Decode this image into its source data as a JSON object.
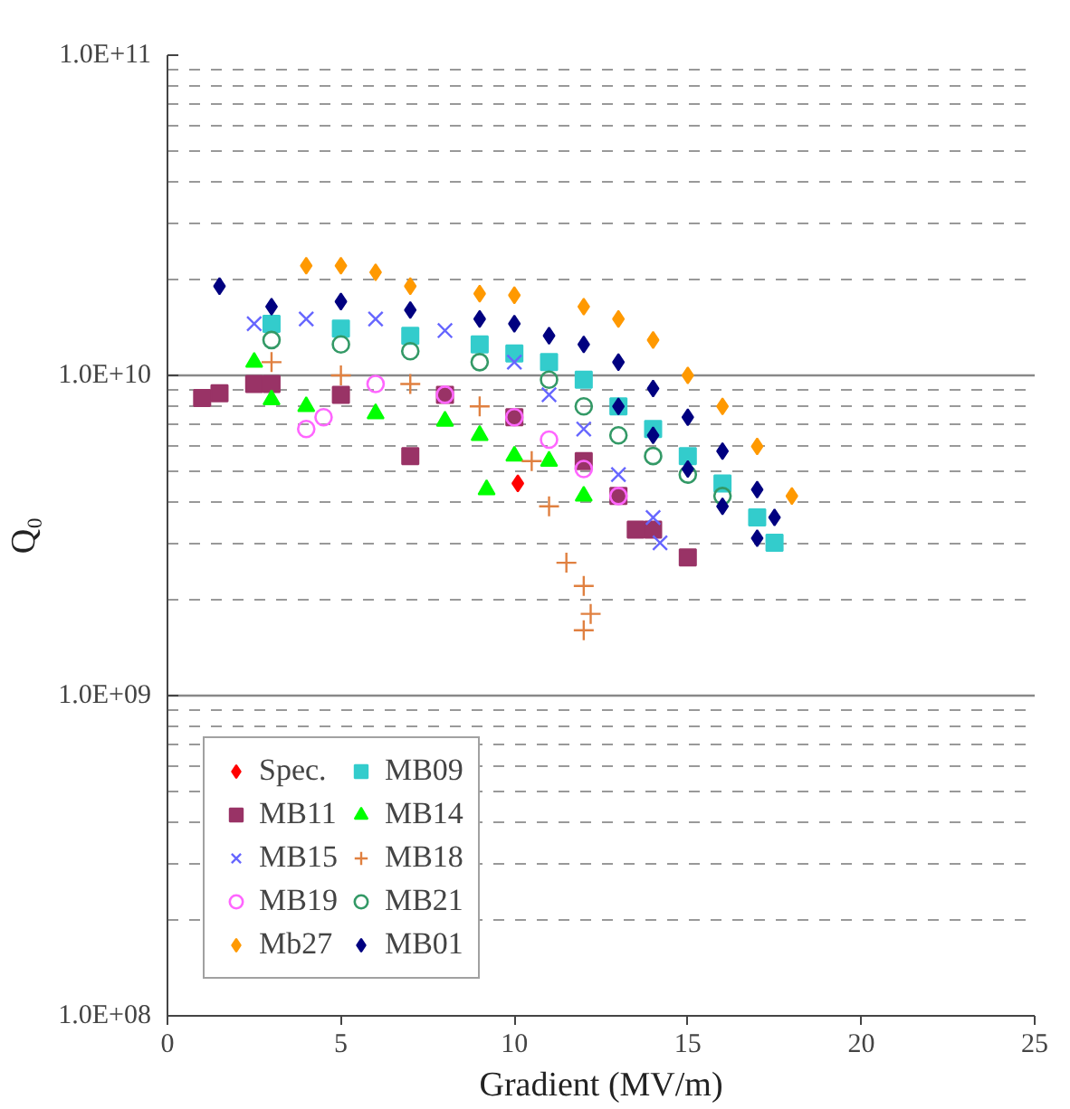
{
  "chart_data": {
    "type": "scatter",
    "xlabel": "Gradient (MV/m)",
    "ylabel": "Q₀",
    "log": "y",
    "grid": "y",
    "legend": "bottom left",
    "xlim": [
      0,
      25
    ],
    "xticks": [
      0,
      5,
      10,
      15,
      20,
      25
    ],
    "ylim": [
      100000000.0,
      100000000000.0
    ],
    "yticks": [
      {
        "value": 100000000.0,
        "label": "1.0E+08"
      },
      {
        "value": 1000000000.0,
        "label": "1.0E+09"
      },
      {
        "value": 10000000000.0,
        "label": "1.0E+10"
      },
      {
        "value": 100000000000.0,
        "label": "1.0E+11"
      }
    ],
    "series": [
      {
        "name": "Spec.",
        "color": "#ff0000",
        "marker": "diamond",
        "x": [
          10.1
        ],
        "values": [
          4600000000.0
        ]
      },
      {
        "name": "MB09",
        "color": "#33cccc",
        "marker": "square",
        "x": [
          3,
          5,
          7,
          9,
          10,
          11,
          12,
          13,
          14,
          15,
          16,
          17,
          17.5
        ],
        "values": [
          14500000000.0,
          14000000000.0,
          13300000000.0,
          12500000000.0,
          11700000000.0,
          11000000000.0,
          9700000000.0,
          8000000000.0,
          6800000000.0,
          5600000000.0,
          4600000000.0,
          3600000000.0,
          3000000000.0
        ]
      },
      {
        "name": "MB11",
        "color": "#993366",
        "marker": "square",
        "x": [
          1,
          1.5,
          2.5,
          3,
          5,
          7,
          8,
          10,
          12,
          13,
          13.5,
          14,
          15
        ],
        "values": [
          8500000000.0,
          8800000000.0,
          9400000000.0,
          9400000000.0,
          8700000000.0,
          5600000000.0,
          8700000000.0,
          7400000000.0,
          5400000000.0,
          4200000000.0,
          3300000000.0,
          3300000000.0,
          2700000000.0
        ]
      },
      {
        "name": "MB14",
        "color": "#00ff00",
        "marker": "triangle",
        "x": [
          2.5,
          3,
          4,
          6,
          8,
          9,
          9.2,
          10,
          11,
          12
        ],
        "values": [
          11000000000.0,
          8400000000.0,
          8000000000.0,
          7600000000.0,
          7200000000.0,
          6500000000.0,
          4400000000.0,
          5600000000.0,
          5400000000.0,
          4200000000.0
        ]
      },
      {
        "name": "MB15",
        "color": "#6666ff",
        "marker": "x",
        "x": [
          2.5,
          4,
          6,
          8,
          10,
          11,
          12,
          13,
          14,
          14.2
        ],
        "values": [
          14500000000.0,
          15000000000.0,
          15000000000.0,
          13800000000.0,
          11000000000.0,
          8700000000.0,
          6800000000.0,
          4900000000.0,
          3600000000.0,
          3000000000.0
        ]
      },
      {
        "name": "MB18",
        "color": "#e08040",
        "marker": "cross",
        "x": [
          3,
          5,
          7,
          9,
          10.5,
          11,
          11.5,
          12,
          12,
          12.2
        ],
        "values": [
          11000000000.0,
          10000000000.0,
          9400000000.0,
          8000000000.0,
          5400000000.0,
          3900000000.0,
          2600000000.0,
          2200000000.0,
          1600000000.0,
          1800000000.0
        ]
      },
      {
        "name": "MB19",
        "color": "#ff66ff",
        "marker": "circle",
        "x": [
          4,
          4.5,
          6,
          8,
          10,
          11,
          12,
          13
        ],
        "values": [
          6800000000.0,
          7400000000.0,
          9400000000.0,
          8700000000.0,
          7400000000.0,
          6300000000.0,
          5100000000.0,
          4200000000.0
        ]
      },
      {
        "name": "MB21",
        "color": "#339966",
        "marker": "circle",
        "x": [
          3,
          5,
          7,
          9,
          11,
          12,
          13,
          14,
          15,
          16
        ],
        "values": [
          12900000000.0,
          12500000000.0,
          11900000000.0,
          11000000000.0,
          9700000000.0,
          8000000000.0,
          6500000000.0,
          5600000000.0,
          4900000000.0,
          4200000000.0
        ]
      },
      {
        "name": "Mb27",
        "color": "#ff9900",
        "marker": "diamond",
        "x": [
          4,
          5,
          6,
          7,
          9,
          10,
          12,
          13,
          14,
          15,
          16,
          17,
          18
        ],
        "values": [
          22000000000.0,
          22000000000.0,
          21000000000.0,
          19000000000.0,
          18000000000.0,
          17800000000.0,
          16400000000.0,
          15000000000.0,
          12900000000.0,
          10000000000.0,
          8000000000.0,
          6000000000.0,
          4200000000.0
        ]
      },
      {
        "name": "MB01",
        "color": "#000080",
        "marker": "diamond",
        "x": [
          1.5,
          3,
          5,
          7,
          9,
          10,
          11,
          12,
          13,
          14,
          15,
          16,
          17,
          17.5,
          13,
          14,
          15,
          16,
          17
        ],
        "values": [
          19000000000.0,
          16400000000.0,
          17000000000.0,
          16000000000.0,
          15000000000.0,
          14500000000.0,
          13300000000.0,
          12500000000.0,
          11000000000.0,
          9100000000.0,
          7400000000.0,
          5800000000.0,
          4400000000.0,
          3600000000.0,
          8000000000.0,
          6500000000.0,
          5100000000.0,
          3900000000.0,
          3100000000.0
        ]
      }
    ]
  }
}
